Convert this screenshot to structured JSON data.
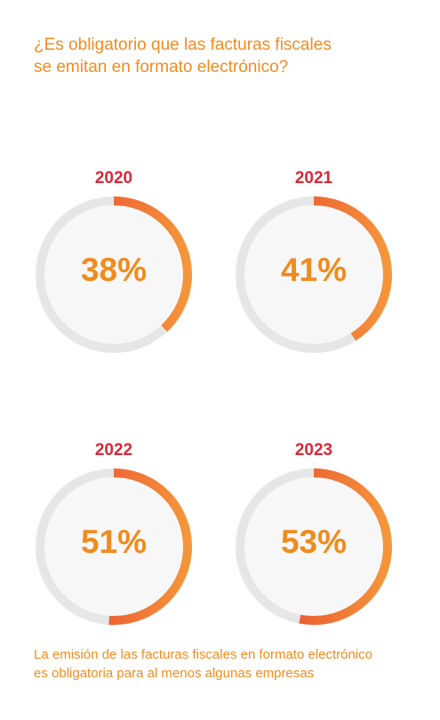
{
  "header": {
    "title_line1": "¿Es obligatorio que las facturas fiscales",
    "title_line2": "se emitan en formato electrónico?"
  },
  "chart_data": {
    "type": "donut",
    "title": "¿Es obligatorio que las facturas fiscales se emitan en formato electrónico?",
    "unit": "%",
    "items": [
      {
        "year": "2020",
        "value": 38,
        "label": "38%"
      },
      {
        "year": "2021",
        "value": 41,
        "label": "41%"
      },
      {
        "year": "2022",
        "value": 51,
        "label": "51%"
      },
      {
        "year": "2023",
        "value": 53,
        "label": "53%"
      }
    ],
    "max": 100
  },
  "footnote": {
    "line1": "La emisión de las facturas fiscales en formato electrónico",
    "line2": "es obligatoria para al menos algunas empresas"
  },
  "colors": {
    "track": "#e6e6e6",
    "inner": "#f7f7f7",
    "arc_start": "#e63a2e",
    "arc_end": "#f5963a",
    "year": "#d42a3a",
    "value": "#f08c1e"
  }
}
